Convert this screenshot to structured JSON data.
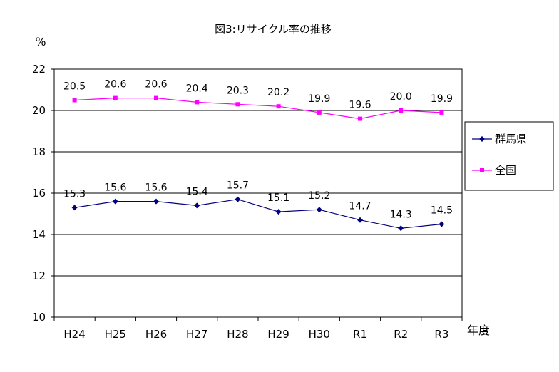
{
  "chart_data": {
    "type": "line",
    "title": "図3:リサイクル率の推移",
    "ylabel": "%",
    "xlabel": "年度",
    "categories": [
      "H24",
      "H25",
      "H26",
      "H27",
      "H28",
      "H29",
      "H30",
      "R1",
      "R2",
      "R3"
    ],
    "ylim": [
      10,
      22
    ],
    "yticks": [
      10,
      12,
      14,
      16,
      18,
      20,
      22
    ],
    "grid": true,
    "legend_position": "right",
    "series": [
      {
        "name": "群馬県",
        "color": "#000080",
        "marker": "diamond",
        "values": [
          15.3,
          15.6,
          15.6,
          15.4,
          15.7,
          15.1,
          15.2,
          14.7,
          14.3,
          14.5
        ],
        "labels": [
          "15.3",
          "15.6",
          "15.6",
          "15.4",
          "15.7",
          "15.1",
          "15.2",
          "14.7",
          "14.3",
          "14.5"
        ]
      },
      {
        "name": "全国",
        "color": "#ff00ff",
        "marker": "square",
        "values": [
          20.5,
          20.6,
          20.6,
          20.4,
          20.3,
          20.2,
          19.9,
          19.6,
          20.0,
          19.9
        ],
        "labels": [
          "20.5",
          "20.6",
          "20.6",
          "20.4",
          "20.3",
          "20.2",
          "19.9",
          "19.6",
          "20.0",
          "19.9"
        ]
      }
    ]
  }
}
